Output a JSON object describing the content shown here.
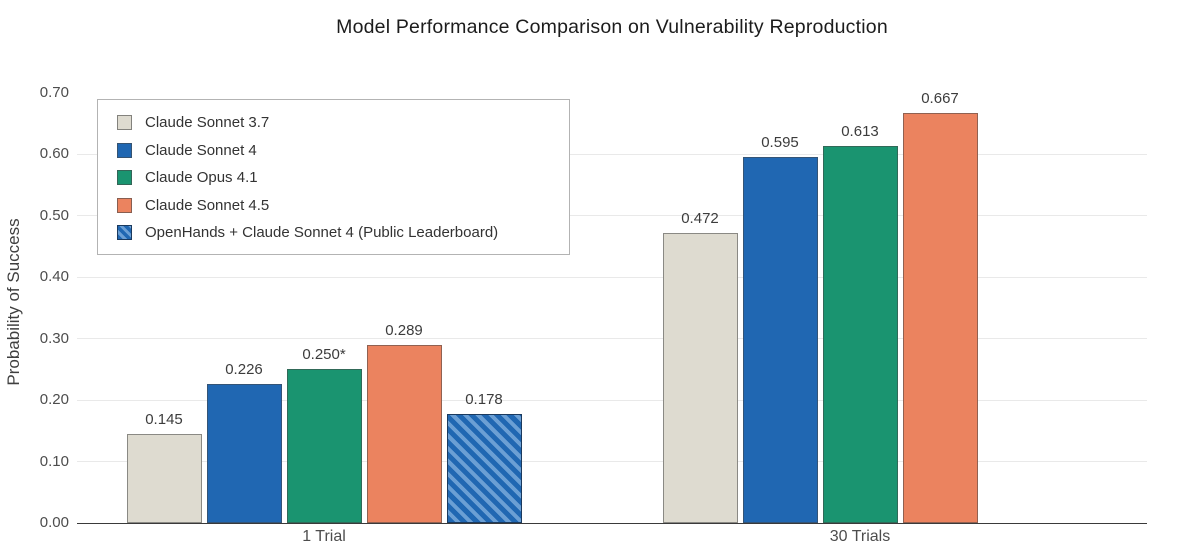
{
  "chart_data": {
    "type": "bar",
    "title": "Model Performance Comparison on Vulnerability Reproduction",
    "ylabel": "Probability of Success",
    "xlabel": "",
    "categories": [
      "1 Trial",
      "30 Trials"
    ],
    "series": [
      {
        "name": "Claude Sonnet 3.7",
        "color": "#dedbd0",
        "hatch": false,
        "values": [
          0.145,
          0.472
        ],
        "labels": [
          "0.145",
          "0.472"
        ]
      },
      {
        "name": "Claude Sonnet 4",
        "color": "#2067b2",
        "hatch": false,
        "values": [
          0.226,
          0.595
        ],
        "labels": [
          "0.226",
          "0.595"
        ]
      },
      {
        "name": "Claude Opus 4.1",
        "color": "#1a9470",
        "hatch": false,
        "values": [
          0.25,
          0.613
        ],
        "labels": [
          "0.250*",
          "0.613"
        ]
      },
      {
        "name": "Claude Sonnet 4.5",
        "color": "#eb835f",
        "hatch": false,
        "values": [
          0.289,
          0.667
        ],
        "labels": [
          "0.289",
          "0.667"
        ]
      },
      {
        "name": "OpenHands + Claude Sonnet 4 (Public Leaderboard)",
        "color": "#2067b2",
        "hatch": true,
        "hatch_color": "#6b9fd4",
        "values": [
          0.178,
          null
        ],
        "labels": [
          "0.178",
          null
        ]
      }
    ],
    "ylim": [
      0,
      0.7
    ],
    "yticks": [
      0.0,
      0.1,
      0.2,
      0.3,
      0.4,
      0.5,
      0.6,
      0.7
    ],
    "grid": "horizontal-light",
    "legend_position": "upper-left",
    "colors": {
      "background": "#ffffff",
      "gridline": "#e9e9e9",
      "axis_line": "#3a3a3a",
      "text": "#1c1c1c"
    }
  }
}
